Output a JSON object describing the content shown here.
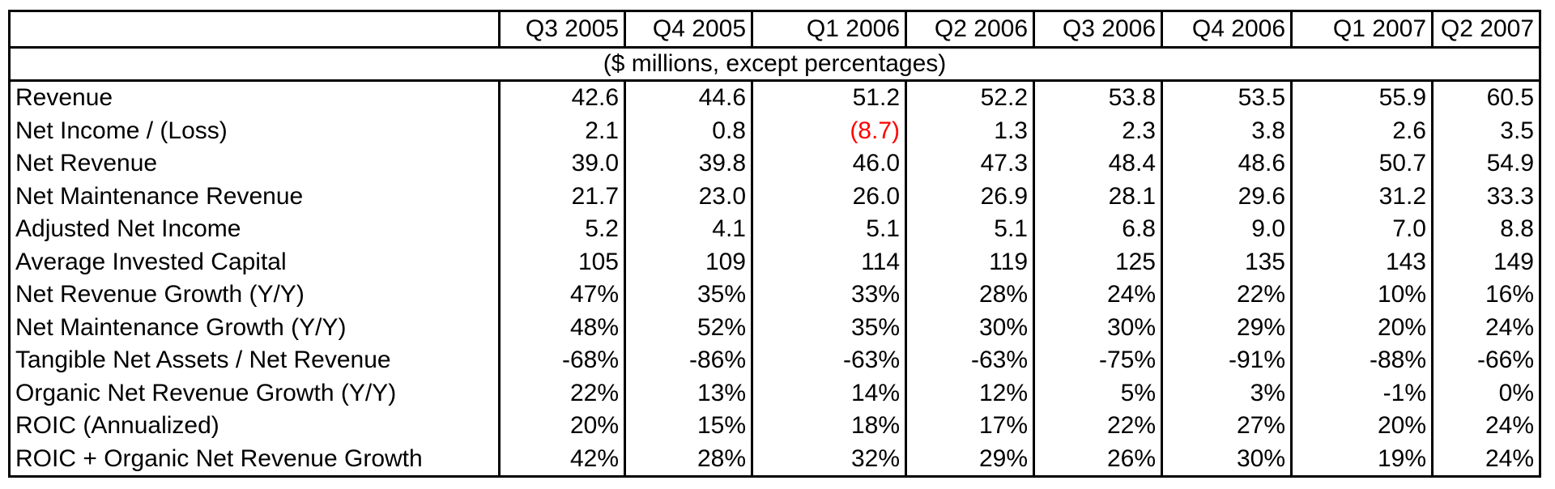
{
  "table": {
    "corner": "",
    "columns": [
      "Q3 2005",
      "Q4 2005",
      "Q1 2006",
      "Q2 2006",
      "Q3 2006",
      "Q4 2006",
      "Q1 2007",
      "Q2 2007"
    ],
    "units_note": "($ millions, except percentages)",
    "highlight_color": "#ff0000",
    "rows": [
      {
        "label": "Revenue",
        "values": [
          "42.6",
          "44.6",
          "51.2",
          "52.2",
          "53.8",
          "53.5",
          "55.9",
          "60.5"
        ]
      },
      {
        "label": "Net Income / (Loss)",
        "values": [
          "2.1",
          "0.8",
          "(8.7)",
          "1.3",
          "2.3",
          "3.8",
          "2.6",
          "3.5"
        ]
      },
      {
        "label": "Net Revenue",
        "values": [
          "39.0",
          "39.8",
          "46.0",
          "47.3",
          "48.4",
          "48.6",
          "50.7",
          "54.9"
        ]
      },
      {
        "label": "Net Maintenance Revenue",
        "values": [
          "21.7",
          "23.0",
          "26.0",
          "26.9",
          "28.1",
          "29.6",
          "31.2",
          "33.3"
        ]
      },
      {
        "label": "Adjusted Net Income",
        "values": [
          "5.2",
          "4.1",
          "5.1",
          "5.1",
          "6.8",
          "9.0",
          "7.0",
          "8.8"
        ]
      },
      {
        "label": "Average Invested Capital",
        "values": [
          "105",
          "109",
          "114",
          "119",
          "125",
          "135",
          "143",
          "149"
        ]
      },
      {
        "label": "Net Revenue Growth (Y/Y)",
        "values": [
          "47%",
          "35%",
          "33%",
          "28%",
          "24%",
          "22%",
          "10%",
          "16%"
        ]
      },
      {
        "label": "Net Maintenance Growth (Y/Y)",
        "values": [
          "48%",
          "52%",
          "35%",
          "30%",
          "30%",
          "29%",
          "20%",
          "24%"
        ]
      },
      {
        "label": "Tangible Net Assets / Net Revenue",
        "values": [
          "-68%",
          "-86%",
          "-63%",
          "-63%",
          "-75%",
          "-91%",
          "-88%",
          "-66%"
        ]
      },
      {
        "label": "Organic Net Revenue Growth (Y/Y)",
        "values": [
          "22%",
          "13%",
          "14%",
          "12%",
          "5%",
          "3%",
          "-1%",
          "0%"
        ]
      },
      {
        "label": "ROIC (Annualized)",
        "values": [
          "20%",
          "15%",
          "18%",
          "17%",
          "22%",
          "27%",
          "20%",
          "24%"
        ]
      },
      {
        "label": "ROIC + Organic Net Revenue Growth",
        "values": [
          "42%",
          "28%",
          "32%",
          "29%",
          "26%",
          "30%",
          "19%",
          "24%"
        ]
      }
    ]
  }
}
